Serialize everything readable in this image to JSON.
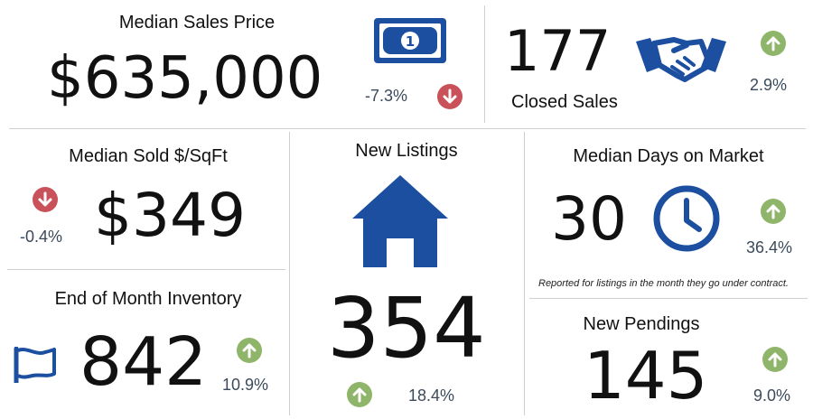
{
  "colors": {
    "blue": "#1c4fa0",
    "up": "#8fb56a",
    "down": "#c8515a"
  },
  "median_sales_price": {
    "title": "Median Sales Price",
    "value": "$635,000",
    "change": "-7.3%",
    "direction": "down",
    "icon": "money-bill-icon"
  },
  "closed_sales": {
    "value": "177",
    "label": "Closed Sales",
    "change": "2.9%",
    "direction": "up",
    "icon": "handshake-icon"
  },
  "median_sold_sqft": {
    "title": "Median Sold $/SqFt",
    "value": "$349",
    "change": "-0.4%",
    "direction": "down"
  },
  "new_listings": {
    "title": "New Listings",
    "value": "354",
    "change": "18.4%",
    "direction": "up",
    "icon": "house-icon"
  },
  "median_days_on_market": {
    "title": "Median Days on Market",
    "value": "30",
    "change": "36.4%",
    "direction": "up",
    "icon": "clock-icon",
    "note": "Reported for listings in the month they go under contract."
  },
  "end_of_month_inventory": {
    "title": "End of Month Inventory",
    "value": "842",
    "change": "10.9%",
    "direction": "up",
    "icon": "flag-icon"
  },
  "new_pendings": {
    "title": "New Pendings",
    "value": "145",
    "change": "9.0%",
    "direction": "up"
  }
}
